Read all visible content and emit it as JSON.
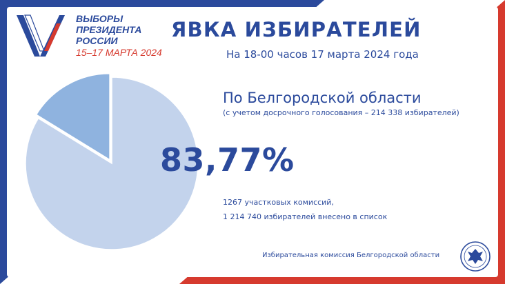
{
  "logo": {
    "lines": [
      "ВЫБОРЫ",
      "ПРЕЗИДЕНТА",
      "РОССИИ"
    ],
    "dates": "15–17 МАРТА 2024"
  },
  "header": {
    "title": "ЯВКА ИЗБИРАТЕЛЕЙ",
    "subtitle": "На 18-00 часов 17 марта 2024 года"
  },
  "region": {
    "name": "По Белгородской области",
    "note": "(с учетом досрочного голосования – 214 338 избирателей)"
  },
  "turnout": {
    "label": "83,77%"
  },
  "stats": {
    "commissions": "1267 участковых комиссий,",
    "voters": "1 214 740 избирателей внесено  в список"
  },
  "footer": {
    "text": "Избирательная комиссия Белгородской области"
  },
  "colors": {
    "brand_blue": "#2b4a9c",
    "accent_red": "#d63a2e",
    "pie_main": "#c3d3ec",
    "pie_slice": "#8fb3df"
  },
  "chart_data": {
    "type": "pie",
    "slices": [
      {
        "value": 83.77,
        "color": "#c3d3ec"
      },
      {
        "value": 16.23,
        "color": "#8fb3df"
      }
    ]
  }
}
